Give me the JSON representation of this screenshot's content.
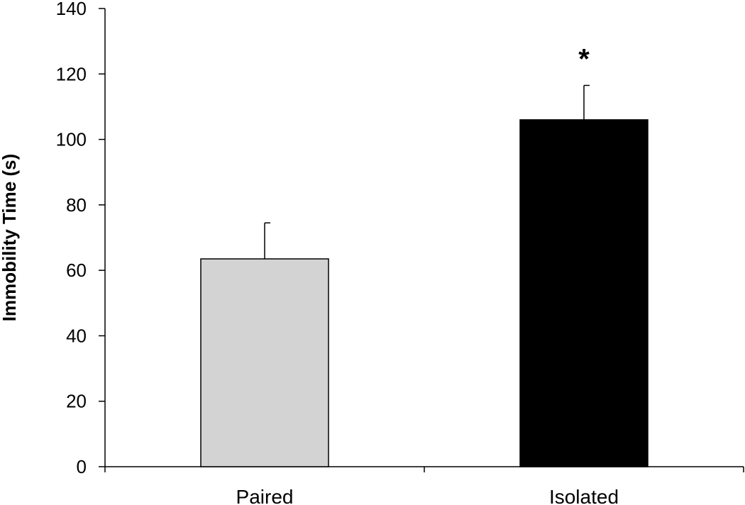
{
  "chart_data": {
    "type": "bar",
    "title": "",
    "xlabel": "",
    "ylabel": "Immobility Time (s)",
    "ylim": [
      0,
      140
    ],
    "yticks": [
      0,
      20,
      40,
      60,
      80,
      100,
      120,
      140
    ],
    "categories": [
      "Paired",
      "Isolated"
    ],
    "values": [
      63.5,
      106
    ],
    "error_bars": [
      11,
      10.5
    ],
    "bar_colors": [
      "#d3d3d3",
      "#000000"
    ],
    "annotations": [
      {
        "category": "Isolated",
        "text": "*"
      }
    ],
    "grid": false,
    "legend": "none"
  }
}
